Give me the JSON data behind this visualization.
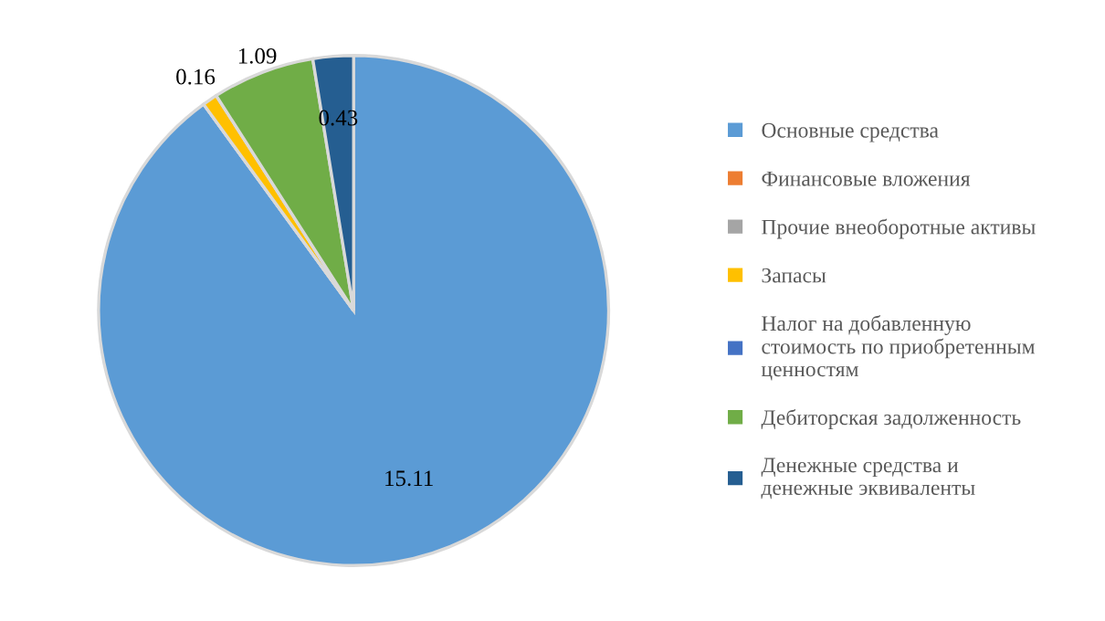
{
  "chart_data": {
    "type": "pie",
    "categories": [
      "Основные средства",
      "Финансовые вложения",
      "Прочие внеоборотные активы",
      "Запасы",
      "Налог на добавленную\nстоимость по приобретенным\nценностям",
      "Дебиторская задолженность",
      "Денежные средства и\nденежные эквиваленты"
    ],
    "values": [
      15.11,
      0,
      0,
      0.16,
      0,
      1.09,
      0.43
    ],
    "value_labels": [
      "15.11",
      null,
      null,
      "0.16",
      null,
      "1.09",
      "0.43"
    ],
    "colors": [
      "#5b9bd5",
      "#ed7d31",
      "#a5a5a5",
      "#ffc000",
      "#4472c4",
      "#70ad47",
      "#255e91"
    ],
    "legend": "right"
  }
}
